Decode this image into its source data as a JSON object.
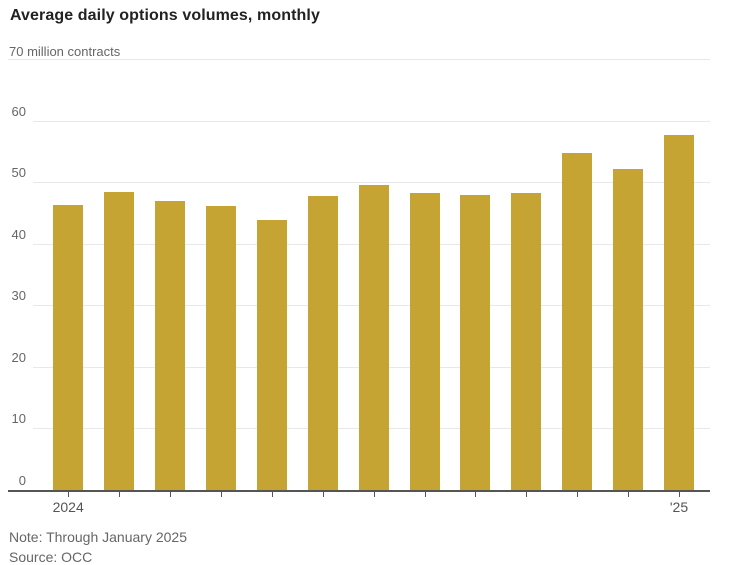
{
  "page": {
    "note": "Note: Through January 2025",
    "source": "Source: OCC"
  },
  "colors": {
    "bar": "#C5A433",
    "gridline": "#e8e8e8",
    "axis": "#555555",
    "title_text": "#222222",
    "muted_text": "#666666"
  },
  "chart_data": {
    "type": "bar",
    "title": "Average daily options volumes, monthly",
    "unit_label": "70 million contracts",
    "xlabel": "",
    "ylabel": "",
    "ylim": [
      0,
      70
    ],
    "y_ticks": [
      0,
      10,
      20,
      30,
      40,
      50,
      60,
      70
    ],
    "grid": "on",
    "legend": "none",
    "x_tick_labels": [
      "2024",
      "",
      "",
      "",
      "",
      "",
      "",
      "",
      "",
      "",
      "",
      "",
      "'25"
    ],
    "values": [
      46.3,
      48.4,
      46.9,
      46.1,
      43.8,
      47.7,
      49.6,
      48.2,
      47.9,
      48.2,
      54.7,
      52.1,
      57.6
    ],
    "bar_color": "#C5A433"
  }
}
